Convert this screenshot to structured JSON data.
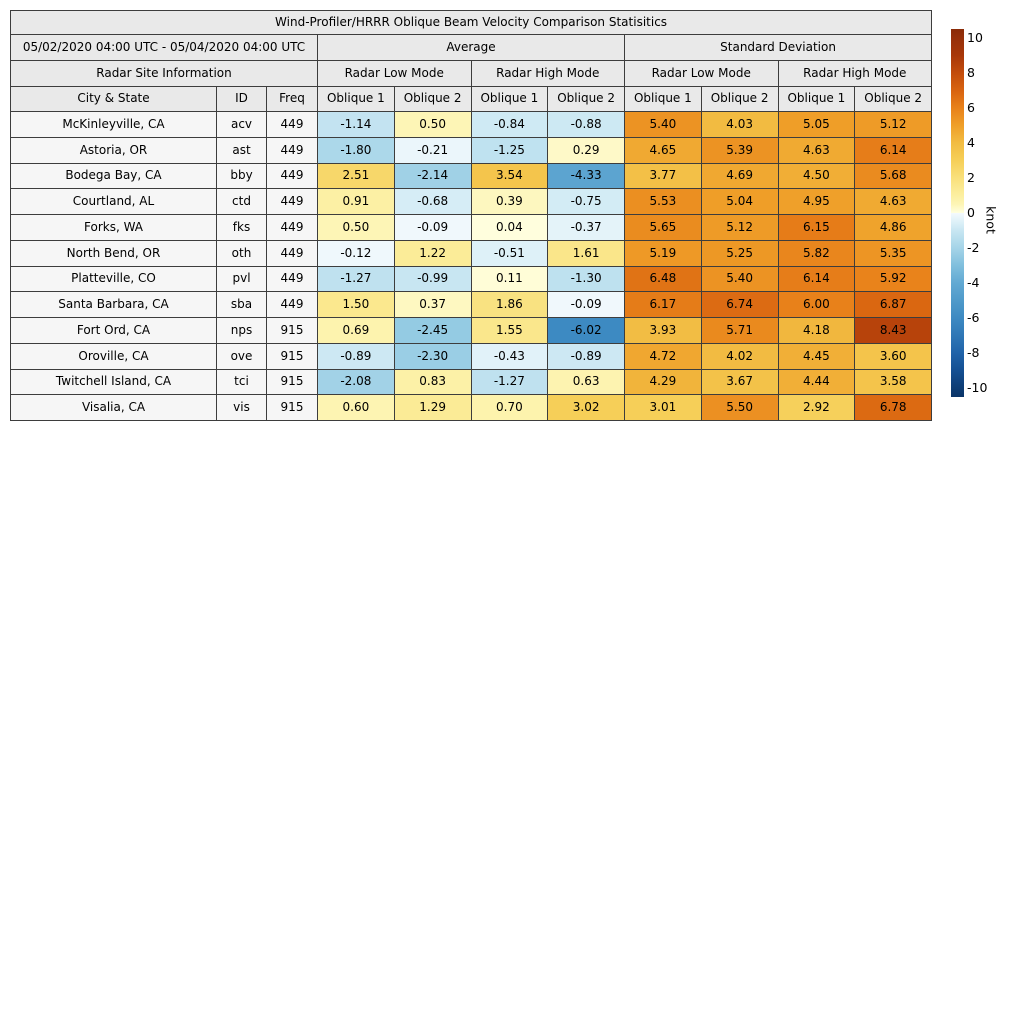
{
  "chart_data": {
    "type": "heatmap-table",
    "title": "Wind-Profiler/HRRR Oblique Beam Velocity Comparison Statisitics",
    "period": "05/02/2020 04:00 UTC - 05/04/2020 04:00 UTC",
    "site_info_header": "Radar Site Information",
    "column_groups": [
      "Average",
      "Standard Deviation"
    ],
    "mode_headers": [
      "Radar Low Mode",
      "Radar High Mode",
      "Radar Low Mode",
      "Radar High Mode"
    ],
    "columns": [
      "City & State",
      "ID",
      "Freq",
      "Oblique 1",
      "Oblique 2",
      "Oblique 1",
      "Oblique 2",
      "Oblique 1",
      "Oblique 2",
      "Oblique 1",
      "Oblique 2"
    ],
    "unit": "knot",
    "rows": [
      {
        "city": "McKinleyville, CA",
        "id": "acv",
        "freq": "449",
        "values": [
          -1.14,
          0.5,
          -0.84,
          -0.88,
          5.4,
          4.03,
          5.05,
          5.12
        ]
      },
      {
        "city": "Astoria, OR",
        "id": "ast",
        "freq": "449",
        "values": [
          -1.8,
          -0.21,
          -1.25,
          0.29,
          4.65,
          5.39,
          4.63,
          6.14
        ]
      },
      {
        "city": "Bodega Bay, CA",
        "id": "bby",
        "freq": "449",
        "values": [
          2.51,
          -2.14,
          3.54,
          -4.33,
          3.77,
          4.69,
          4.5,
          5.68
        ]
      },
      {
        "city": "Courtland, AL",
        "id": "ctd",
        "freq": "449",
        "values": [
          0.91,
          -0.68,
          0.39,
          -0.75,
          5.53,
          5.04,
          4.95,
          4.63
        ]
      },
      {
        "city": "Forks, WA",
        "id": "fks",
        "freq": "449",
        "values": [
          0.5,
          -0.09,
          0.04,
          -0.37,
          5.65,
          5.12,
          6.15,
          4.86
        ]
      },
      {
        "city": "North Bend, OR",
        "id": "oth",
        "freq": "449",
        "values": [
          -0.12,
          1.22,
          -0.51,
          1.61,
          5.19,
          5.25,
          5.82,
          5.35
        ]
      },
      {
        "city": "Platteville, CO",
        "id": "pvl",
        "freq": "449",
        "values": [
          -1.27,
          -0.99,
          0.11,
          -1.3,
          6.48,
          5.4,
          6.14,
          5.92
        ]
      },
      {
        "city": "Santa Barbara, CA",
        "id": "sba",
        "freq": "449",
        "values": [
          1.5,
          0.37,
          1.86,
          -0.09,
          6.17,
          6.74,
          6.0,
          6.87
        ]
      },
      {
        "city": "Fort Ord, CA",
        "id": "nps",
        "freq": "915",
        "values": [
          0.69,
          -2.45,
          1.55,
          -6.02,
          3.93,
          5.71,
          4.18,
          8.43
        ]
      },
      {
        "city": "Oroville, CA",
        "id": "ove",
        "freq": "915",
        "values": [
          -0.89,
          -2.3,
          -0.43,
          -0.89,
          4.72,
          4.02,
          4.45,
          3.6
        ]
      },
      {
        "city": "Twitchell Island, CA",
        "id": "tci",
        "freq": "915",
        "values": [
          -2.08,
          0.83,
          -1.27,
          0.63,
          4.29,
          3.67,
          4.44,
          3.58
        ]
      },
      {
        "city": "Visalia, CA",
        "id": "vis",
        "freq": "915",
        "values": [
          0.6,
          1.29,
          0.7,
          3.02,
          3.01,
          5.5,
          2.92,
          6.78
        ]
      }
    ],
    "colorbar": {
      "label": "knot",
      "min": -10.5,
      "max": 10.5,
      "ticks": [
        10,
        8,
        6,
        4,
        2,
        0,
        -2,
        -4,
        -6,
        -8,
        -10
      ]
    },
    "colormap": {
      "positive": [
        [
          0,
          "#ffffe0"
        ],
        [
          0.5,
          "#fdf5b6"
        ],
        [
          1,
          "#fcefa0"
        ],
        [
          2,
          "#f9e07c"
        ],
        [
          3,
          "#f6cf58"
        ],
        [
          4,
          "#f2bc42"
        ],
        [
          5,
          "#ef9f29"
        ],
        [
          6,
          "#e8811a"
        ],
        [
          7,
          "#d86310"
        ],
        [
          8,
          "#c24c0c"
        ],
        [
          9,
          "#a83709"
        ],
        [
          10,
          "#96300a"
        ],
        [
          10.5,
          "#8a2b08"
        ]
      ],
      "negative": [
        [
          -10.5,
          "#0a3468"
        ],
        [
          -10,
          "#0d3c74"
        ],
        [
          -9,
          "#144f92"
        ],
        [
          -8,
          "#2063a9"
        ],
        [
          -7,
          "#2f77b6"
        ],
        [
          -6,
          "#3d8ac2"
        ],
        [
          -5,
          "#4f9aca"
        ],
        [
          -4,
          "#62a9d3"
        ],
        [
          -3,
          "#80bfdd"
        ],
        [
          -2,
          "#a5d4e8"
        ],
        [
          -1,
          "#c8e6f2"
        ],
        [
          -0.5,
          "#def1f8"
        ],
        [
          0,
          "#f4fafd"
        ]
      ]
    }
  },
  "colors": {
    "border": "#3d3d3d",
    "header_bg": "#e9e9e9",
    "site_bg": "#f6f6f6",
    "background": "#ffffff",
    "text": "#000000"
  }
}
